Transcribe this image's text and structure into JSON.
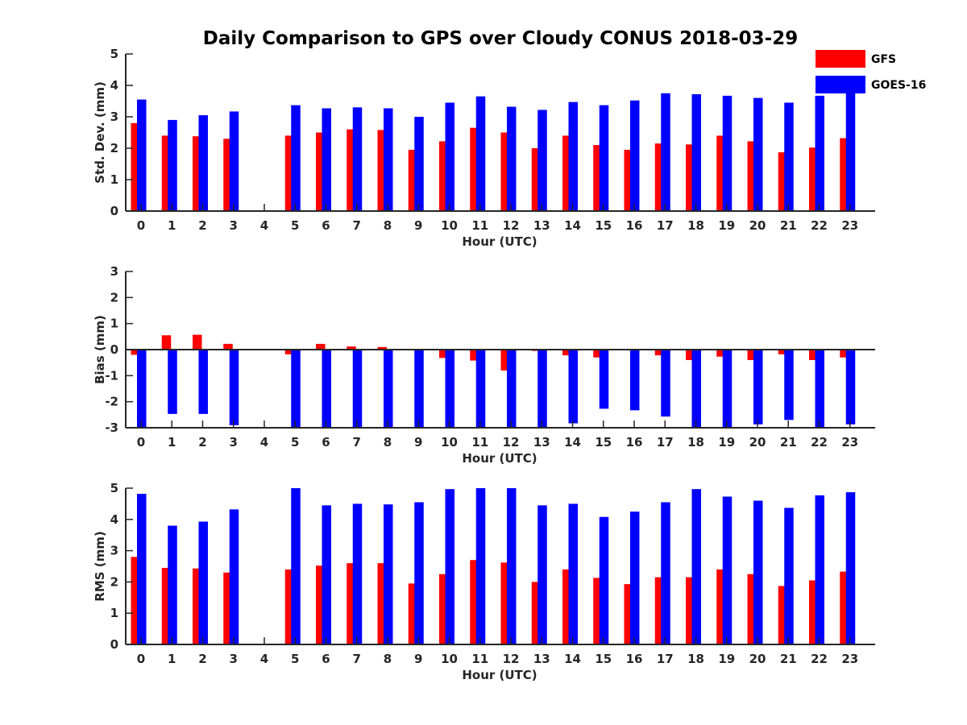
{
  "title": "Daily Comparison to GPS over Cloudy CONUS 2018-03-29",
  "legend": {
    "placement": "top-right",
    "items": [
      {
        "label": "GFS",
        "color": "#ff0000"
      },
      {
        "label": "GOES-16",
        "color": "#0000ff"
      }
    ]
  },
  "chart_data": [
    {
      "type": "bar",
      "xlabel": "Hour (UTC)",
      "ylabel": "Std. Dev. (mm)",
      "ylim": [
        0,
        5
      ],
      "yticks": [
        0,
        1,
        2,
        3,
        4,
        5
      ],
      "categories": [
        "0",
        "1",
        "2",
        "3",
        "4",
        "5",
        "6",
        "7",
        "8",
        "9",
        "10",
        "11",
        "12",
        "13",
        "14",
        "15",
        "16",
        "17",
        "18",
        "19",
        "20",
        "21",
        "22",
        "23"
      ],
      "series": [
        {
          "name": "GFS",
          "color": "#ff0000",
          "values": [
            2.8,
            2.4,
            2.38,
            2.3,
            null,
            2.4,
            2.5,
            2.6,
            2.58,
            1.95,
            2.22,
            2.65,
            2.5,
            2.0,
            2.4,
            2.1,
            1.95,
            2.15,
            2.12,
            2.4,
            2.22,
            1.87,
            2.02,
            2.32
          ]
        },
        {
          "name": "GOES-16",
          "color": "#0000ff",
          "values": [
            3.55,
            2.9,
            3.05,
            3.17,
            null,
            3.37,
            3.27,
            3.3,
            3.27,
            3.0,
            3.45,
            3.65,
            3.32,
            3.22,
            3.47,
            3.37,
            3.52,
            3.75,
            3.72,
            3.67,
            3.6,
            3.45,
            3.67,
            3.9
          ]
        }
      ]
    },
    {
      "type": "bar",
      "xlabel": "Hour (UTC)",
      "ylabel": "Bias (mm)",
      "ylim": [
        -3,
        3
      ],
      "yticks": [
        -3,
        -2,
        -1,
        0,
        1,
        2,
        3
      ],
      "categories": [
        "0",
        "1",
        "2",
        "3",
        "4",
        "5",
        "6",
        "7",
        "8",
        "9",
        "10",
        "11",
        "12",
        "13",
        "14",
        "15",
        "16",
        "17",
        "18",
        "19",
        "20",
        "21",
        "22",
        "23"
      ],
      "series": [
        {
          "name": "GFS",
          "color": "#ff0000",
          "values": [
            -0.2,
            0.55,
            0.57,
            0.22,
            null,
            -0.18,
            0.22,
            0.12,
            0.1,
            -0.03,
            -0.32,
            -0.42,
            -0.8,
            -0.05,
            -0.22,
            -0.3,
            0.02,
            -0.22,
            -0.4,
            -0.27,
            -0.4,
            -0.18,
            -0.4,
            -0.3
          ]
        },
        {
          "name": "GOES-16",
          "color": "#0000ff",
          "values": [
            -3.0,
            -2.47,
            -2.47,
            -2.9,
            null,
            -3.0,
            -3.0,
            -3.0,
            -3.0,
            -3.0,
            -3.0,
            -3.0,
            -3.0,
            -3.0,
            -2.83,
            -2.27,
            -2.33,
            -2.57,
            -3.0,
            -3.0,
            -2.87,
            -2.7,
            -3.0,
            -2.87
          ]
        }
      ]
    },
    {
      "type": "bar",
      "xlabel": "Hour (UTC)",
      "ylabel": "RMS (mm)",
      "ylim": [
        0,
        5
      ],
      "yticks": [
        0,
        1,
        2,
        3,
        4,
        5
      ],
      "categories": [
        "0",
        "1",
        "2",
        "3",
        "4",
        "5",
        "6",
        "7",
        "8",
        "9",
        "10",
        "11",
        "12",
        "13",
        "14",
        "15",
        "16",
        "17",
        "18",
        "19",
        "20",
        "21",
        "22",
        "23"
      ],
      "series": [
        {
          "name": "GFS",
          "color": "#ff0000",
          "values": [
            2.8,
            2.45,
            2.43,
            2.3,
            null,
            2.4,
            2.52,
            2.6,
            2.6,
            1.95,
            2.25,
            2.7,
            2.62,
            2.0,
            2.4,
            2.13,
            1.93,
            2.15,
            2.15,
            2.4,
            2.25,
            1.87,
            2.05,
            2.33
          ]
        },
        {
          "name": "GOES-16",
          "color": "#0000ff",
          "values": [
            4.82,
            3.8,
            3.93,
            4.32,
            null,
            5.0,
            4.45,
            4.5,
            4.48,
            4.55,
            4.97,
            5.0,
            5.0,
            4.45,
            4.5,
            4.08,
            4.25,
            4.55,
            4.97,
            4.73,
            4.6,
            4.37,
            4.77,
            4.87
          ]
        }
      ]
    }
  ]
}
